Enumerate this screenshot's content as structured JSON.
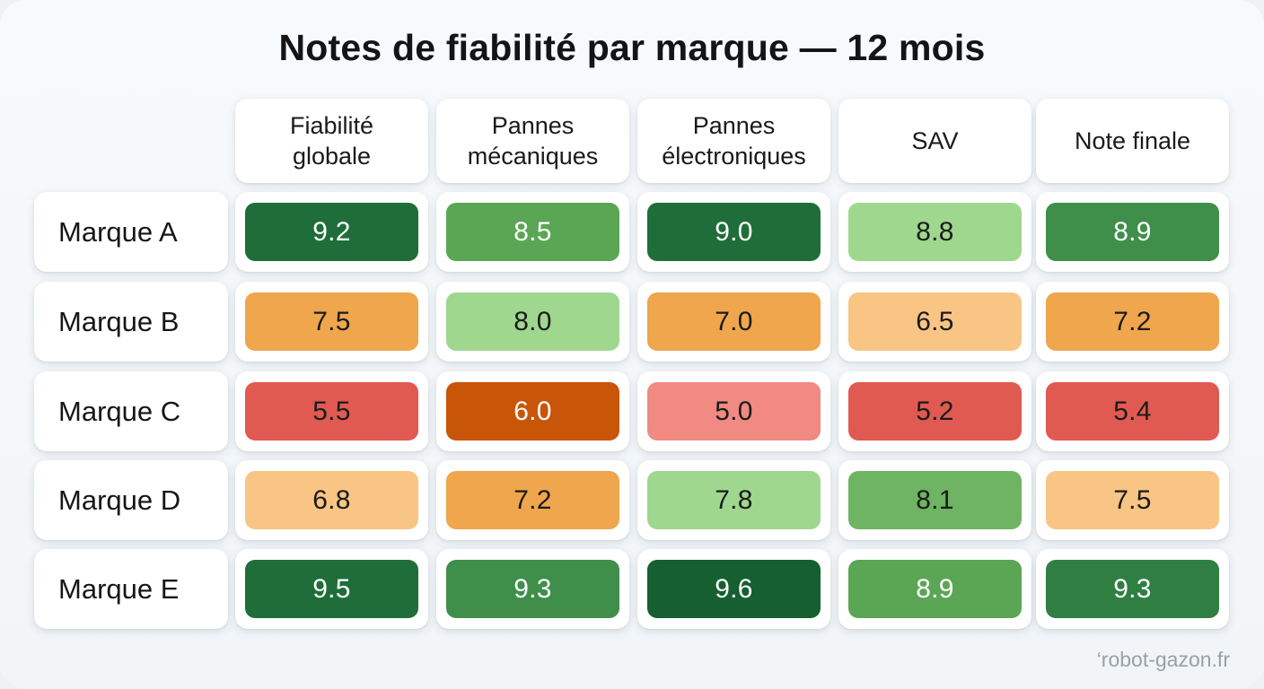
{
  "credit": "‘robot-gazon.fr",
  "chart_data": {
    "type": "heatmap",
    "title": "Notes de fiabilité par marque — 12 mois",
    "columns": [
      "Fiabilité\nglobale",
      "Pannes\nmécaniques",
      "Pannes\nélectroniques",
      "SAV",
      "Note finale"
    ],
    "rows": [
      "Marque A",
      "Marque B",
      "Marque C",
      "Marque D",
      "Marque E"
    ],
    "values": [
      [
        "9.2",
        "8.5",
        "9.0",
        "8.8",
        "8.9"
      ],
      [
        "7.5",
        "8.0",
        "7.0",
        "6.5",
        "7.2"
      ],
      [
        "5.5",
        "6.0",
        "5.0",
        "5.2",
        "5.4"
      ],
      [
        "6.8",
        "7.2",
        "7.8",
        "8.1",
        "7.5"
      ],
      [
        "9.5",
        "9.3",
        "9.6",
        "8.9",
        "9.3"
      ]
    ],
    "cell_colors": [
      [
        "#1f6e3a",
        "#5aa655",
        "#1f6e3a",
        "#9fd78f",
        "#3f8f4b"
      ],
      [
        "#efa64d",
        "#9fd78f",
        "#efa64d",
        "#f8c585",
        "#efa64d"
      ],
      [
        "#e05a52",
        "#c85508",
        "#f08a82",
        "#e05a52",
        "#e05a52"
      ],
      [
        "#f8c585",
        "#efa64d",
        "#9fd78f",
        "#6eb462",
        "#f8c585"
      ],
      [
        "#1f6e3a",
        "#3f8f4b",
        "#155f30",
        "#5aa655",
        "#2f7f43"
      ]
    ],
    "text_colors": [
      [
        "#ffffff",
        "#ffffff",
        "#ffffff",
        "#1b1b1b",
        "#ffffff"
      ],
      [
        "#1b1b1b",
        "#1b1b1b",
        "#1b1b1b",
        "#1b1b1b",
        "#1b1b1b"
      ],
      [
        "#1b1b1b",
        "#ffffff",
        "#1b1b1b",
        "#1b1b1b",
        "#1b1b1b"
      ],
      [
        "#1b1b1b",
        "#1b1b1b",
        "#1b1b1b",
        "#1b1b1b",
        "#1b1b1b"
      ],
      [
        "#ffffff",
        "#ffffff",
        "#ffffff",
        "#ffffff",
        "#ffffff"
      ]
    ]
  }
}
